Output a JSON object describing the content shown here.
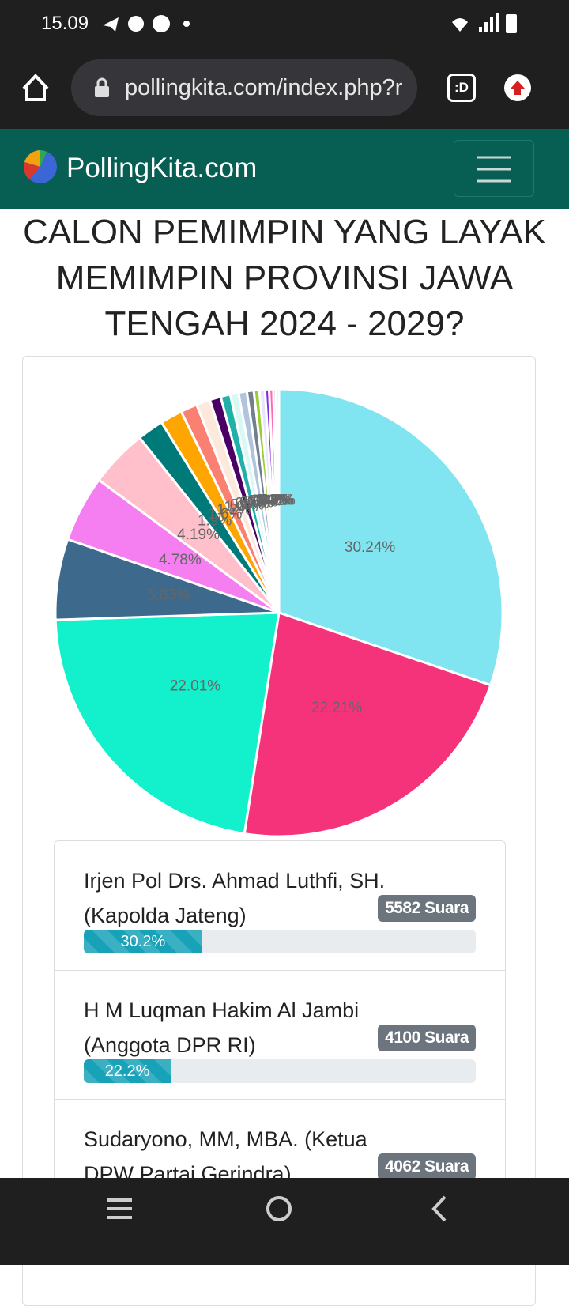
{
  "status_bar": {
    "time": "15.09"
  },
  "browser": {
    "url": "pollingkita.com/index.php?r",
    "tab_icon": ":D"
  },
  "navbar": {
    "brand": "PollingKita.com"
  },
  "title": "CALON PEMIMPIN YANG LAYAK MEMIMPIN PROVINSI JAWA TENGAH 2024 - 2029?",
  "chart_data": {
    "type": "pie",
    "values": [
      30.24,
      22.21,
      22.01,
      5.83,
      4.78,
      4.19,
      1.9,
      1.6,
      1.2,
      1.0,
      0.8,
      0.7,
      0.6,
      0.6,
      0.5,
      0.4,
      0.4,
      0.3,
      0.3,
      0.2,
      0.2
    ],
    "value_labels": [
      "30.24%",
      "22.21%",
      "22.01%",
      "5.83%",
      "4.78%",
      "4.19%",
      "1.9%",
      "1.6%",
      "1.2%",
      "1.0%",
      "0.8%",
      "0.7%",
      "0.6%",
      "0.6%",
      "0.5%",
      "0.4%",
      "0.4%",
      "0.3%",
      "0.3%",
      "0.2%",
      "0.2%"
    ],
    "colors": [
      "#80e5f0",
      "#f5337a",
      "#12f0cc",
      "#3d6a8c",
      "#f57ef0",
      "#ffc0cb",
      "#007a78",
      "#ffa500",
      "#fa8072",
      "#fde9dc",
      "#4b0066",
      "#20b2aa",
      "#d8f8f4",
      "#b0c4de",
      "#708090",
      "#9acd32",
      "#e6e6fa",
      "#8a2be2",
      "#ff69b4",
      "#c0c0c0",
      "#ffe4b5"
    ]
  },
  "poll_items": [
    {
      "name": "Irjen Pol Drs. Ahmad Luthfi, SH. (Kapolda Jateng)",
      "votes": "5582 Suara",
      "percent": 30.2,
      "percent_label": "30.2%"
    },
    {
      "name": "H M Luqman Hakim Al Jambi (Anggota DPR RI)",
      "votes": "4100 Suara",
      "percent": 22.2,
      "percent_label": "22.2%"
    },
    {
      "name": "Sudaryono, MM, MBA. (Ketua DPW Partai Gerindra)",
      "votes": "4062 Suara"
    }
  ]
}
